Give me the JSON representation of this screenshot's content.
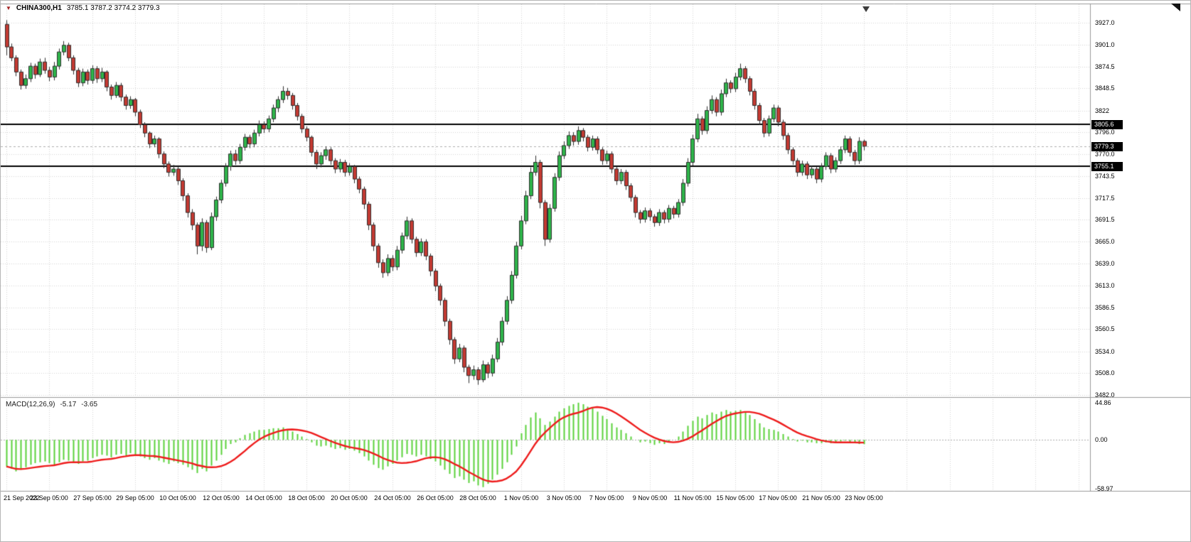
{
  "header": {
    "symbol_marker": "▼",
    "symbol": "CHINA300,H1",
    "ohlc": "3785.1 3787.2 3774.2 3779.3"
  },
  "macd_label": {
    "name": "MACD(12,26,9)",
    "macd_value": "-5.17",
    "signal_value": "-3.65"
  },
  "price_axis": {
    "ticks": [
      "3927.0",
      "3901.0",
      "3874.5",
      "3848.5",
      "3822",
      "3796.0",
      "3770.0",
      "3743.5",
      "3717.5",
      "3691.5",
      "3665.0",
      "3639.0",
      "3613.0",
      "3586.5",
      "3560.5",
      "3534.0",
      "3508.0",
      "3482.0"
    ],
    "tags": [
      {
        "label": "3805.6",
        "value": 3805.6,
        "kind": "hline-tag"
      },
      {
        "label": "3779.3",
        "value": 3779.3,
        "kind": "bid-tag"
      },
      {
        "label": "3755.1",
        "value": 3755.1,
        "kind": "hline-tag"
      }
    ]
  },
  "macd_axis": {
    "ticks": [
      "44.86",
      "0.00",
      "-58.97"
    ]
  },
  "time_axis": [
    "21 Sep 2022",
    "23 Sep 05:00",
    "27 Sep 05:00",
    "29 Sep 05:00",
    "10 Oct 05:00",
    "12 Oct 05:00",
    "14 Oct 05:00",
    "18 Oct 05:00",
    "20 Oct 05:00",
    "24 Oct 05:00",
    "26 Oct 05:00",
    "28 Oct 05:00",
    "1 Nov 05:00",
    "3 Nov 05:00",
    "7 Nov 05:00",
    "9 Nov 05:00",
    "11 Nov 05:00",
    "15 Nov 05:00",
    "17 Nov 05:00",
    "21 Nov 05:00",
    "23 Nov 05:00"
  ],
  "colors": {
    "up": "#2eb44a",
    "down": "#c33a32",
    "wick": "#2f2f2f",
    "macd_hist": "#5bd23b",
    "macd_signal": "#ee1c1c",
    "hline": "#000000",
    "grid": "#d6d6d6",
    "bid_line": "#b0b0b0",
    "separator": "#9a9a9a",
    "tag_bg": "#000000",
    "tag_text": "#ffffff"
  },
  "chart_data": {
    "type": "candlestick",
    "title": "CHINA300,H1",
    "symbol": "CHINA300",
    "timeframe": "H1",
    "price_range": [
      3481,
      3949
    ],
    "hlines": [
      3805.6,
      3755.1
    ],
    "current_price": 3779.3,
    "last_candle_ohlc": [
      3785.1,
      3787.2,
      3774.2,
      3779.3
    ],
    "candles": [
      [
        3925,
        3930,
        3888,
        3898
      ],
      [
        3898,
        3902,
        3881,
        3885
      ],
      [
        3885,
        3888,
        3863,
        3868
      ],
      [
        3868,
        3871,
        3847,
        3852
      ],
      [
        3852,
        3865,
        3848,
        3860
      ],
      [
        3860,
        3879,
        3856,
        3875
      ],
      [
        3875,
        3878,
        3860,
        3865
      ],
      [
        3865,
        3884,
        3862,
        3880
      ],
      [
        3880,
        3885,
        3866,
        3870
      ],
      [
        3870,
        3874,
        3857,
        3862
      ],
      [
        3862,
        3880,
        3858,
        3875
      ],
      [
        3875,
        3896,
        3871,
        3892
      ],
      [
        3892,
        3905,
        3888,
        3900
      ],
      [
        3900,
        3903,
        3881,
        3885
      ],
      [
        3885,
        3888,
        3865,
        3870
      ],
      [
        3870,
        3873,
        3850,
        3855
      ],
      [
        3855,
        3872,
        3851,
        3868
      ],
      [
        3868,
        3871,
        3853,
        3858
      ],
      [
        3858,
        3876,
        3854,
        3872
      ],
      [
        3872,
        3875,
        3855,
        3860
      ],
      [
        3860,
        3873,
        3856,
        3868
      ],
      [
        3868,
        3870,
        3845,
        3850
      ],
      [
        3850,
        3853,
        3835,
        3840
      ],
      [
        3840,
        3856,
        3837,
        3852
      ],
      [
        3852,
        3855,
        3833,
        3838
      ],
      [
        3838,
        3841,
        3823,
        3828
      ],
      [
        3828,
        3839,
        3824,
        3835
      ],
      [
        3835,
        3837,
        3815,
        3820
      ],
      [
        3820,
        3823,
        3801,
        3805
      ],
      [
        3805,
        3808,
        3790,
        3795
      ],
      [
        3795,
        3797,
        3777,
        3782
      ],
      [
        3782,
        3792,
        3778,
        3788
      ],
      [
        3788,
        3790,
        3765,
        3770
      ],
      [
        3770,
        3773,
        3753,
        3758
      ],
      [
        3758,
        3761,
        3743,
        3748
      ],
      [
        3748,
        3757,
        3744,
        3752
      ],
      [
        3752,
        3755,
        3733,
        3738
      ],
      [
        3738,
        3741,
        3714,
        3720
      ],
      [
        3720,
        3723,
        3694,
        3700
      ],
      [
        3700,
        3704,
        3679,
        3685
      ],
      [
        3685,
        3688,
        3650,
        3660
      ],
      [
        3660,
        3693,
        3654,
        3688
      ],
      [
        3688,
        3691,
        3652,
        3658
      ],
      [
        3658,
        3700,
        3655,
        3695
      ],
      [
        3695,
        3719,
        3690,
        3715
      ],
      [
        3715,
        3739,
        3711,
        3735
      ],
      [
        3735,
        3759,
        3731,
        3755
      ],
      [
        3755,
        3774,
        3750,
        3770
      ],
      [
        3770,
        3775,
        3757,
        3762
      ],
      [
        3762,
        3782,
        3758,
        3778
      ],
      [
        3778,
        3794,
        3774,
        3790
      ],
      [
        3790,
        3793,
        3777,
        3782
      ],
      [
        3782,
        3799,
        3778,
        3795
      ],
      [
        3795,
        3810,
        3791,
        3805
      ],
      [
        3805,
        3809,
        3795,
        3800
      ],
      [
        3800,
        3816,
        3796,
        3812
      ],
      [
        3812,
        3829,
        3808,
        3825
      ],
      [
        3825,
        3839,
        3820,
        3835
      ],
      [
        3835,
        3851,
        3831,
        3845
      ],
      [
        3845,
        3849,
        3835,
        3840
      ],
      [
        3840,
        3843,
        3823,
        3828
      ],
      [
        3828,
        3831,
        3810,
        3815
      ],
      [
        3815,
        3818,
        3795,
        3800
      ],
      [
        3800,
        3803,
        3785,
        3790
      ],
      [
        3790,
        3792,
        3767,
        3772
      ],
      [
        3772,
        3775,
        3752,
        3758
      ],
      [
        3758,
        3772,
        3754,
        3768
      ],
      [
        3768,
        3779,
        3763,
        3775
      ],
      [
        3775,
        3778,
        3757,
        3762
      ],
      [
        3762,
        3765,
        3747,
        3752
      ],
      [
        3752,
        3764,
        3748,
        3760
      ],
      [
        3760,
        3763,
        3743,
        3748
      ],
      [
        3748,
        3759,
        3744,
        3755
      ],
      [
        3755,
        3757,
        3735,
        3740
      ],
      [
        3740,
        3743,
        3723,
        3728
      ],
      [
        3728,
        3731,
        3704,
        3710
      ],
      [
        3710,
        3713,
        3679,
        3685
      ],
      [
        3685,
        3688,
        3654,
        3660
      ],
      [
        3660,
        3663,
        3634,
        3640
      ],
      [
        3640,
        3644,
        3622,
        3628
      ],
      [
        3628,
        3650,
        3624,
        3645
      ],
      [
        3645,
        3649,
        3630,
        3635
      ],
      [
        3635,
        3660,
        3631,
        3655
      ],
      [
        3655,
        3676,
        3651,
        3672
      ],
      [
        3672,
        3695,
        3668,
        3690
      ],
      [
        3690,
        3693,
        3663,
        3668
      ],
      [
        3668,
        3671,
        3647,
        3652
      ],
      [
        3652,
        3669,
        3648,
        3665
      ],
      [
        3665,
        3668,
        3643,
        3648
      ],
      [
        3648,
        3651,
        3624,
        3630
      ],
      [
        3630,
        3633,
        3606,
        3612
      ],
      [
        3612,
        3615,
        3589,
        3595
      ],
      [
        3595,
        3598,
        3564,
        3570
      ],
      [
        3570,
        3573,
        3542,
        3548
      ],
      [
        3548,
        3551,
        3519,
        3525
      ],
      [
        3525,
        3543,
        3521,
        3538
      ],
      [
        3538,
        3541,
        3509,
        3515
      ],
      [
        3515,
        3518,
        3496,
        3505
      ],
      [
        3505,
        3517,
        3500,
        3512
      ],
      [
        3512,
        3515,
        3494,
        3500
      ],
      [
        3500,
        3523,
        3497,
        3518
      ],
      [
        3518,
        3521,
        3502,
        3508
      ],
      [
        3508,
        3530,
        3504,
        3525
      ],
      [
        3525,
        3550,
        3521,
        3545
      ],
      [
        3545,
        3575,
        3541,
        3570
      ],
      [
        3570,
        3600,
        3566,
        3595
      ],
      [
        3595,
        3630,
        3591,
        3625
      ],
      [
        3625,
        3665,
        3621,
        3660
      ],
      [
        3660,
        3696,
        3656,
        3690
      ],
      [
        3690,
        3726,
        3686,
        3720
      ],
      [
        3720,
        3754,
        3716,
        3748
      ],
      [
        3748,
        3768,
        3744,
        3760
      ],
      [
        3760,
        3763,
        3705,
        3712
      ],
      [
        3712,
        3715,
        3660,
        3668
      ],
      [
        3668,
        3710,
        3664,
        3705
      ],
      [
        3705,
        3747,
        3701,
        3742
      ],
      [
        3742,
        3773,
        3738,
        3768
      ],
      [
        3768,
        3785,
        3764,
        3780
      ],
      [
        3780,
        3797,
        3776,
        3792
      ],
      [
        3792,
        3796,
        3780,
        3785
      ],
      [
        3785,
        3803,
        3781,
        3798
      ],
      [
        3798,
        3801,
        3785,
        3790
      ],
      [
        3790,
        3793,
        3773,
        3778
      ],
      [
        3778,
        3792,
        3774,
        3788
      ],
      [
        3788,
        3791,
        3770,
        3775
      ],
      [
        3775,
        3778,
        3757,
        3762
      ],
      [
        3762,
        3774,
        3758,
        3770
      ],
      [
        3770,
        3773,
        3747,
        3752
      ],
      [
        3752,
        3755,
        3733,
        3738
      ],
      [
        3738,
        3752,
        3734,
        3748
      ],
      [
        3748,
        3751,
        3727,
        3732
      ],
      [
        3732,
        3735,
        3713,
        3718
      ],
      [
        3718,
        3721,
        3694,
        3700
      ],
      [
        3700,
        3703,
        3687,
        3692
      ],
      [
        3692,
        3706,
        3688,
        3702
      ],
      [
        3702,
        3705,
        3690,
        3695
      ],
      [
        3695,
        3698,
        3683,
        3688
      ],
      [
        3688,
        3704,
        3684,
        3700
      ],
      [
        3700,
        3703,
        3687,
        3692
      ],
      [
        3692,
        3709,
        3688,
        3705
      ],
      [
        3705,
        3708,
        3693,
        3698
      ],
      [
        3698,
        3716,
        3694,
        3712
      ],
      [
        3712,
        3740,
        3708,
        3735
      ],
      [
        3735,
        3765,
        3731,
        3760
      ],
      [
        3760,
        3793,
        3756,
        3788
      ],
      [
        3788,
        3818,
        3784,
        3812
      ],
      [
        3812,
        3815,
        3793,
        3798
      ],
      [
        3798,
        3827,
        3794,
        3822
      ],
      [
        3822,
        3840,
        3818,
        3835
      ],
      [
        3835,
        3838,
        3815,
        3820
      ],
      [
        3820,
        3847,
        3816,
        3842
      ],
      [
        3842,
        3860,
        3838,
        3855
      ],
      [
        3855,
        3858,
        3843,
        3848
      ],
      [
        3848,
        3867,
        3844,
        3862
      ],
      [
        3862,
        3878,
        3858,
        3872
      ],
      [
        3872,
        3875,
        3855,
        3860
      ],
      [
        3860,
        3863,
        3840,
        3845
      ],
      [
        3845,
        3848,
        3823,
        3828
      ],
      [
        3828,
        3831,
        3805,
        3810
      ],
      [
        3810,
        3813,
        3790,
        3795
      ],
      [
        3795,
        3816,
        3791,
        3812
      ],
      [
        3812,
        3829,
        3808,
        3825
      ],
      [
        3825,
        3828,
        3803,
        3808
      ],
      [
        3808,
        3811,
        3787,
        3792
      ],
      [
        3792,
        3795,
        3770,
        3775
      ],
      [
        3775,
        3778,
        3757,
        3762
      ],
      [
        3762,
        3765,
        3743,
        3748
      ],
      [
        3748,
        3762,
        3744,
        3758
      ],
      [
        3758,
        3761,
        3740,
        3745
      ],
      [
        3745,
        3756,
        3741,
        3752
      ],
      [
        3752,
        3755,
        3735,
        3740
      ],
      [
        3740,
        3759,
        3736,
        3755
      ],
      [
        3755,
        3772,
        3751,
        3768
      ],
      [
        3768,
        3771,
        3747,
        3752
      ],
      [
        3752,
        3766,
        3748,
        3762
      ],
      [
        3762,
        3779,
        3758,
        3775
      ],
      [
        3775,
        3792,
        3771,
        3788
      ],
      [
        3788,
        3791,
        3767,
        3772
      ],
      [
        3772,
        3775,
        3757,
        3762
      ],
      [
        3762,
        3790,
        3758,
        3785.1
      ],
      [
        3785.1,
        3787.2,
        3774.2,
        3779.3
      ]
    ],
    "macd": {
      "type": "histogram+signal",
      "params": [
        12,
        26,
        9
      ],
      "range": [
        -61.5,
        49
      ],
      "axis_ticks": [
        44.86,
        0.0,
        -58.97
      ],
      "last_macd": -5.17,
      "last_signal": -3.65,
      "signal_period": 9,
      "histogram": [
        -32,
        -35,
        -38,
        -36,
        -33,
        -30,
        -28,
        -27,
        -26,
        -28,
        -30,
        -27,
        -24,
        -25,
        -27,
        -29,
        -26,
        -25,
        -22,
        -20,
        -18,
        -19,
        -21,
        -18,
        -17,
        -19,
        -16,
        -18,
        -20,
        -22,
        -24,
        -22,
        -25,
        -27,
        -29,
        -26,
        -28,
        -30,
        -33,
        -36,
        -40,
        -35,
        -38,
        -31,
        -25,
        -18,
        -11,
        -5,
        -3,
        2,
        6,
        8,
        10,
        12,
        12,
        13,
        14,
        14,
        15,
        13,
        10,
        7,
        4,
        1,
        -3,
        -7,
        -8,
        -7,
        -9,
        -11,
        -10,
        -12,
        -11,
        -13,
        -16,
        -20,
        -25,
        -30,
        -34,
        -36,
        -32,
        -29,
        -25,
        -21,
        -17,
        -18,
        -20,
        -18,
        -20,
        -23,
        -26,
        -31,
        -36,
        -41,
        -46,
        -44,
        -48,
        -52,
        -50,
        -55,
        -57,
        -53,
        -48,
        -42,
        -35,
        -27,
        -18,
        -8,
        8,
        18,
        27,
        33,
        26,
        18,
        22,
        28,
        34,
        38,
        41,
        43,
        44.8,
        43,
        40,
        38,
        34,
        29,
        25,
        20,
        15,
        12,
        8,
        4,
        0,
        -3,
        -2,
        -4,
        -6,
        -4,
        -5,
        -2,
        0,
        4,
        10,
        17,
        23,
        28,
        26,
        30,
        33,
        31,
        34,
        36,
        34,
        35,
        36,
        34,
        30,
        25,
        20,
        15,
        13,
        12,
        10,
        7,
        4,
        1,
        -2,
        -1,
        -3,
        -3,
        -4,
        -4,
        -3,
        -4,
        -3,
        -2,
        -1,
        -3,
        -4,
        -5,
        -5.17
      ]
    }
  }
}
